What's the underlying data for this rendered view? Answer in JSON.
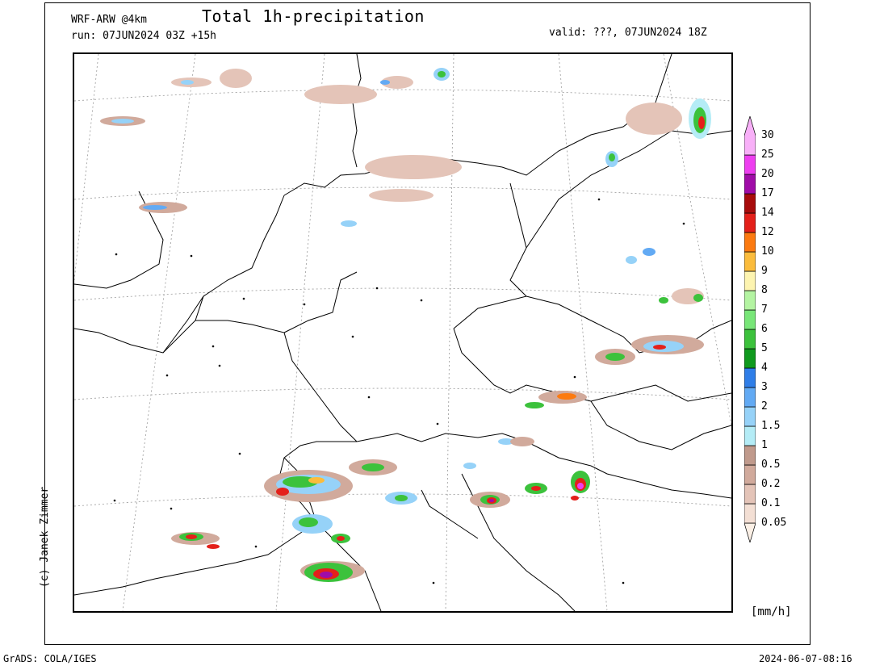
{
  "header": {
    "model": "WRF-ARW @4km",
    "run": "run: 07JUN2024 03Z +15h",
    "title": "Total 1h-precipitation",
    "valid": "valid: ???, 07JUN2024 18Z"
  },
  "credit": "(c) Janek Zimmer",
  "footer": {
    "software": "GrADS: COLA/IGES",
    "timestamp": "2024-06-07-08:16"
  },
  "legend": {
    "unit": "[mm/h]",
    "levels": [
      {
        "label": "0.05",
        "color": "#fbf0e6"
      },
      {
        "label": "0.1",
        "color": "#f3dfd4"
      },
      {
        "label": "0.2",
        "color": "#e4c4b8"
      },
      {
        "label": "0.5",
        "color": "#d1aa9c"
      },
      {
        "label": "1",
        "color": "#c09a8c"
      },
      {
        "label": "1.5",
        "color": "#b4ecf6"
      },
      {
        "label": "2",
        "color": "#96d2f8"
      },
      {
        "label": "3",
        "color": "#62aaf4"
      },
      {
        "label": "4",
        "color": "#2f7ee8"
      },
      {
        "label": "5",
        "color": "#109a1e"
      },
      {
        "label": "6",
        "color": "#3cc23c"
      },
      {
        "label": "7",
        "color": "#78e678"
      },
      {
        "label": "8",
        "color": "#b4f4a2"
      },
      {
        "label": "9",
        "color": "#fdf4b0"
      },
      {
        "label": "10",
        "color": "#fbbc3c"
      },
      {
        "label": "12",
        "color": "#fc7a10"
      },
      {
        "label": "14",
        "color": "#e4201a"
      },
      {
        "label": "17",
        "color": "#a80c0c"
      },
      {
        "label": "20",
        "color": "#a00ca8"
      },
      {
        "label": "25",
        "color": "#ee3ef0"
      },
      {
        "label": "30",
        "color": "#f8b0f8"
      }
    ]
  }
}
